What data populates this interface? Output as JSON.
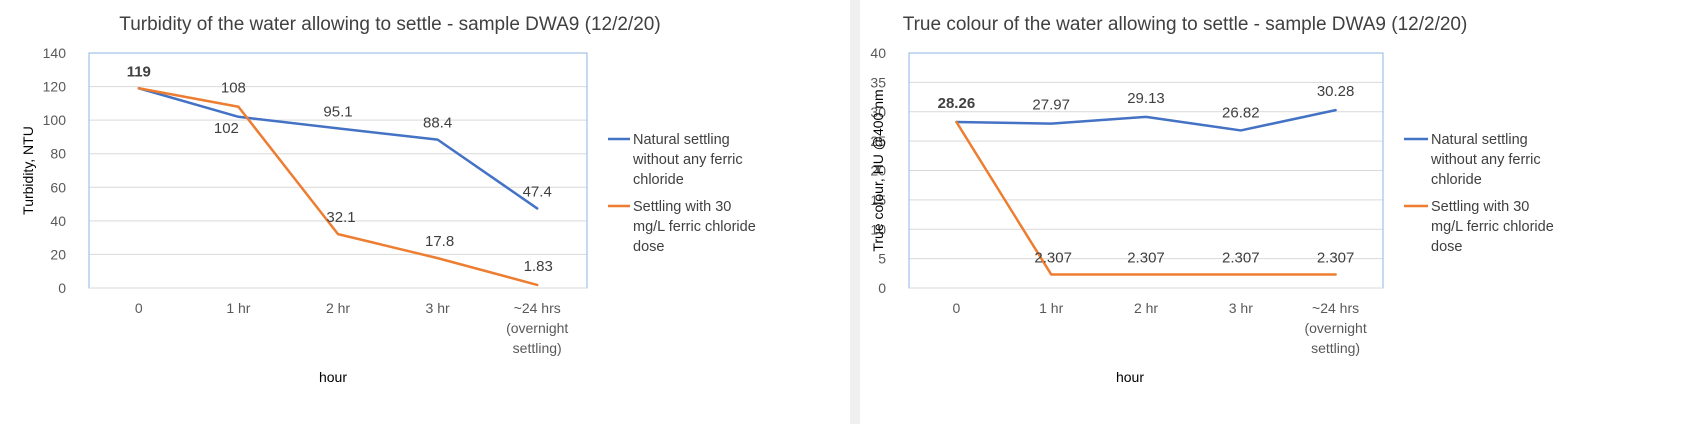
{
  "chart_data": [
    {
      "type": "line",
      "title": "Turbidity of the water allowing to settle  - sample DWA9 (12/2/20)",
      "xlabel": "hour",
      "ylabel": "Turbidity, NTU",
      "ylim": [
        0,
        140
      ],
      "ytick_step": 20,
      "grid": true,
      "legend_position": "right",
      "categories": [
        [
          "0"
        ],
        [
          "1 hr"
        ],
        [
          "2 hr"
        ],
        [
          "3 hr"
        ],
        [
          "~24 hrs",
          "(overnight",
          "settling)"
        ]
      ],
      "series": [
        {
          "name": [
            "Natural settling",
            "without any ferric",
            "chloride"
          ],
          "color": "#4472C4",
          "values": [
            119,
            102,
            95.1,
            88.4,
            47.4
          ],
          "labels": [
            "119",
            "102",
            "95.1",
            "88.4",
            "47.4"
          ]
        },
        {
          "name": [
            "Settling with 30",
            "mg/L ferric chloride",
            "dose"
          ],
          "color": "#ED7D31",
          "values": [
            119,
            108,
            32.1,
            17.8,
            1.83
          ],
          "labels": [
            "119",
            "108",
            "32.1",
            "17.8",
            "1.83"
          ]
        }
      ]
    },
    {
      "type": "line",
      "title": "True colour of the water allowing to settle - sample DWA9 (12/2/20)",
      "xlabel": "hour",
      "ylabel": "True colour, HU @400 nm",
      "ylim": [
        0,
        40
      ],
      "ytick_step": 5,
      "grid": true,
      "legend_position": "right",
      "categories": [
        [
          "0"
        ],
        [
          "1 hr"
        ],
        [
          "2 hr"
        ],
        [
          "3 hr"
        ],
        [
          "~24 hrs",
          "(overnight",
          "settling)"
        ]
      ],
      "series": [
        {
          "name": [
            "Natural settling",
            "without any ferric",
            "chloride"
          ],
          "color": "#4472C4",
          "values": [
            28.26,
            27.97,
            29.13,
            26.82,
            30.28
          ],
          "labels": [
            "28.26",
            "27.97",
            "29.13",
            "26.82",
            "30.28"
          ]
        },
        {
          "name": [
            "Settling with 30",
            "mg/L ferric chloride",
            "dose"
          ],
          "color": "#ED7D31",
          "values": [
            28.26,
            2.307,
            2.307,
            2.307,
            2.307
          ],
          "labels": [
            "28.26",
            "2.307",
            "2.307",
            "2.307",
            "2.307"
          ]
        }
      ]
    }
  ]
}
